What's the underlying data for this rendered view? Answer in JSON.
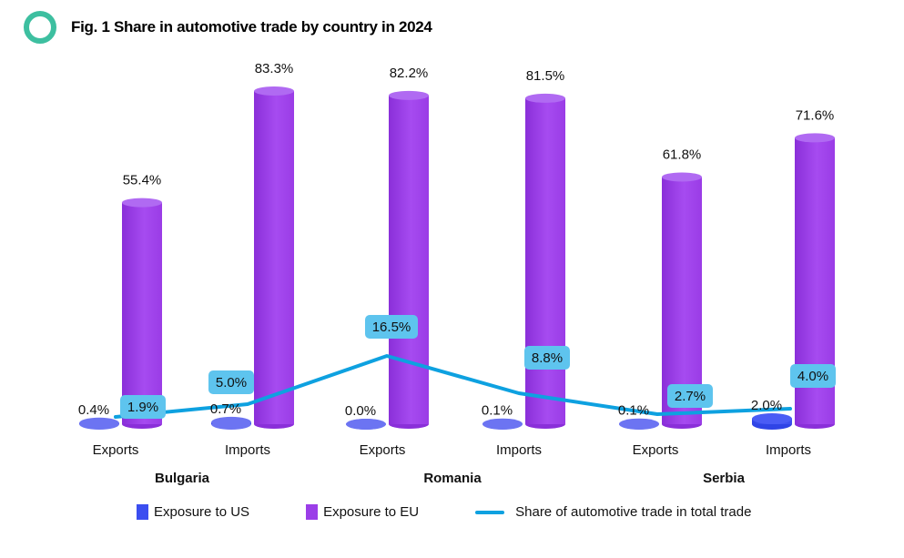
{
  "header": {
    "title": "Fig. 1 Share in automotive trade by country in 2024",
    "logo_icon": "ring-icon"
  },
  "colors": {
    "us": "#3b4ef0",
    "us_light": "#6c74f2",
    "eu": "#9b3ee8",
    "eu_light": "#b06af2",
    "line": "#0ea1e0",
    "label_box": "#5ec4ee",
    "logo": "#3dbfa0"
  },
  "chart_data": {
    "type": "bar",
    "title": "Fig. 1 Share in automotive trade by country in 2024",
    "xlabel": "",
    "ylabel": "",
    "ylim": [
      0,
      100
    ],
    "grid": false,
    "legend_position": "bottom",
    "groups": [
      "Bulgaria",
      "Romania",
      "Serbia"
    ],
    "categories": [
      "Exports",
      "Imports",
      "Exports",
      "Imports",
      "Exports",
      "Imports"
    ],
    "category_groups": [
      "Bulgaria",
      "Bulgaria",
      "Romania",
      "Romania",
      "Serbia",
      "Serbia"
    ],
    "series": [
      {
        "name": "Exposure to US",
        "kind": "bar",
        "values": [
          0.4,
          0.7,
          0.0,
          0.1,
          0.1,
          2.0
        ],
        "labels": [
          "0.4%",
          "0.7%",
          "0.0%",
          "0.1%",
          "0.1%",
          "2.0%"
        ]
      },
      {
        "name": "Exposure to EU",
        "kind": "bar",
        "values": [
          55.4,
          83.3,
          82.2,
          81.5,
          61.8,
          71.6
        ],
        "labels": [
          "55.4%",
          "83.3%",
          "82.2%",
          "81.5%",
          "61.8%",
          "71.6%"
        ]
      },
      {
        "name": "Share of automotive trade in total trade",
        "kind": "line",
        "values": [
          1.9,
          5.0,
          16.5,
          8.8,
          2.7,
          4.0
        ],
        "labels": [
          "1.9%",
          "5.0%",
          "16.5%",
          "8.8%",
          "2.7%",
          "4.0%"
        ]
      }
    ]
  },
  "legend": {
    "items": [
      {
        "label": "Exposure to US",
        "type": "swatch",
        "color": "#3b4ef0"
      },
      {
        "label": "Exposure to EU",
        "type": "swatch",
        "color": "#9b3ee8"
      },
      {
        "label": "Share of automotive trade in total trade",
        "type": "line",
        "color": "#0ea1e0"
      }
    ]
  }
}
